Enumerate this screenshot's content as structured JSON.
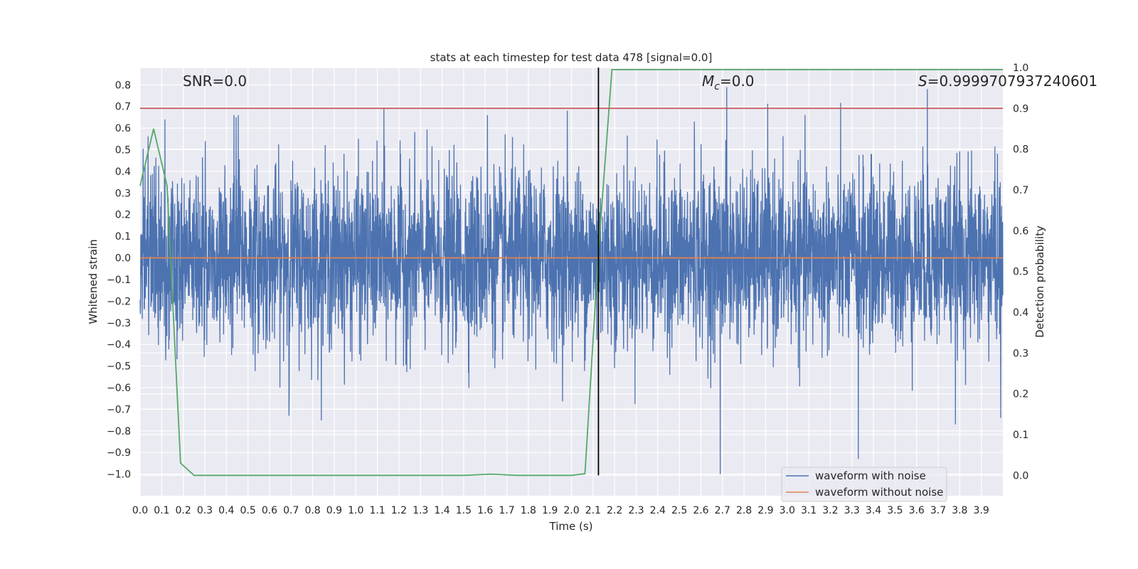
{
  "chart_data": {
    "type": "line",
    "title": "stats at each timestep for test data 478 [signal=0.0]",
    "xlabel": "Time (s)",
    "ylabel": "Whitened strain",
    "y2label": "Detection probability",
    "xlim": [
      0.0,
      4.0
    ],
    "ylim": [
      -1.1,
      0.88
    ],
    "y2lim": [
      -0.05,
      1.0
    ],
    "x_ticks": [
      "0.0",
      "0.1",
      "0.2",
      "0.3",
      "0.4",
      "0.5",
      "0.6",
      "0.7",
      "0.8",
      "0.9",
      "1.0",
      "1.1",
      "1.2",
      "1.3",
      "1.4",
      "1.5",
      "1.6",
      "1.7",
      "1.8",
      "1.9",
      "2.0",
      "2.1",
      "2.2",
      "2.3",
      "2.4",
      "2.5",
      "2.6",
      "2.7",
      "2.8",
      "2.9",
      "3.0",
      "3.1",
      "3.2",
      "3.3",
      "3.4",
      "3.5",
      "3.6",
      "3.7",
      "3.8",
      "3.9"
    ],
    "y_ticks": [
      "0.8",
      "0.7",
      "0.6",
      "0.5",
      "0.4",
      "0.3",
      "0.2",
      "0.1",
      "0.0",
      "−0.1",
      "−0.2",
      "−0.3",
      "−0.4",
      "−0.5",
      "−0.6",
      "−0.7",
      "−0.8",
      "−0.9",
      "−1.0"
    ],
    "y2_ticks": [
      "1.0",
      "0.9",
      "0.8",
      "0.7",
      "0.6",
      "0.5",
      "0.4",
      "0.3",
      "0.2",
      "0.1",
      "0.0"
    ],
    "annotations": {
      "snr": "SNR=0.0",
      "mc_symbol": "M",
      "mc_sub": "c",
      "mc_value": "=0.0",
      "s_symbol": "S",
      "s_value": "=0.9999707937240601"
    },
    "grid": true,
    "legend_position": "lower-right",
    "series": [
      {
        "name": "waveform with noise",
        "axis": "left",
        "color": "#4c72b0",
        "kind": "noise",
        "sample_count": 4000,
        "approx_range": [
          -1.0,
          0.79
        ],
        "peak_values": [
          {
            "x": 0.115,
            "y": 0.64
          },
          {
            "x": 0.435,
            "y": 0.66
          },
          {
            "x": 0.445,
            "y": 0.65
          },
          {
            "x": 0.455,
            "y": 0.66
          },
          {
            "x": 0.69,
            "y": -0.73
          },
          {
            "x": 1.13,
            "y": 0.69
          },
          {
            "x": 1.61,
            "y": 0.66
          },
          {
            "x": 1.98,
            "y": 0.68
          },
          {
            "x": 2.57,
            "y": 0.63
          },
          {
            "x": 2.69,
            "y": -1.0
          },
          {
            "x": 2.72,
            "y": 0.79
          },
          {
            "x": 3.33,
            "y": -0.93
          },
          {
            "x": 3.65,
            "y": 0.78
          },
          {
            "x": 3.78,
            "y": -0.77
          },
          {
            "x": 3.99,
            "y": -0.74
          }
        ]
      },
      {
        "name": "waveform without noise",
        "axis": "left",
        "color": "#dd8452",
        "x": [
          0.0,
          4.0
        ],
        "values": [
          0.0,
          0.0
        ]
      },
      {
        "name": "",
        "axis": "right",
        "color": "#55a868",
        "x": [
          0.0,
          0.0625,
          0.125,
          0.1875,
          0.25,
          0.3125,
          0.5,
          0.75,
          1.0,
          1.25,
          1.5,
          1.625,
          1.75,
          2.0,
          2.0625,
          2.125,
          2.1875,
          2.5,
          3.0,
          3.5,
          4.0
        ],
        "values": [
          0.71,
          0.85,
          0.71,
          0.03,
          0.0,
          0.0,
          0.0,
          0.0,
          0.0,
          0.0,
          0.0,
          0.003,
          0.0,
          0.0,
          0.004,
          0.55,
          0.995,
          0.995,
          0.995,
          0.995,
          0.995
        ]
      },
      {
        "name": "",
        "axis": "right",
        "color": "#c44e52",
        "kind": "hline",
        "y": 0.9
      },
      {
        "name": "",
        "axis": "right",
        "color": "#000000",
        "kind": "vline",
        "x": 2.125,
        "y_range": [
          0.0,
          1.0
        ]
      }
    ]
  }
}
